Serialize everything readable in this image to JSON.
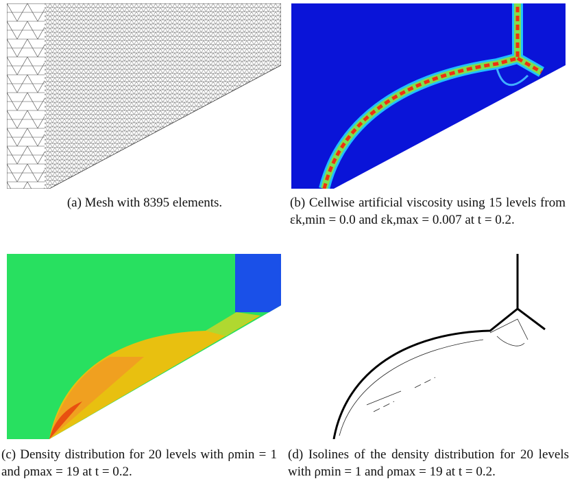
{
  "figures": [
    {
      "label": "(a)",
      "caption": "Mesh with 8395 elements."
    },
    {
      "label": "(b)",
      "caption": "Cellwise artificial viscosity using 15 levels from εk,min = 0.0 and εk,max = 0.007 at t = 0.2."
    },
    {
      "label": "(c)",
      "caption": "Density distribution for 20 levels with ρmin = 1 and ρmax = 19 at t = 0.2."
    },
    {
      "label": "(d)",
      "caption": "Isolines of the density distribution for 20 levels with ρmin = 1 and ρmax = 19 at t = 0.2."
    }
  ]
}
